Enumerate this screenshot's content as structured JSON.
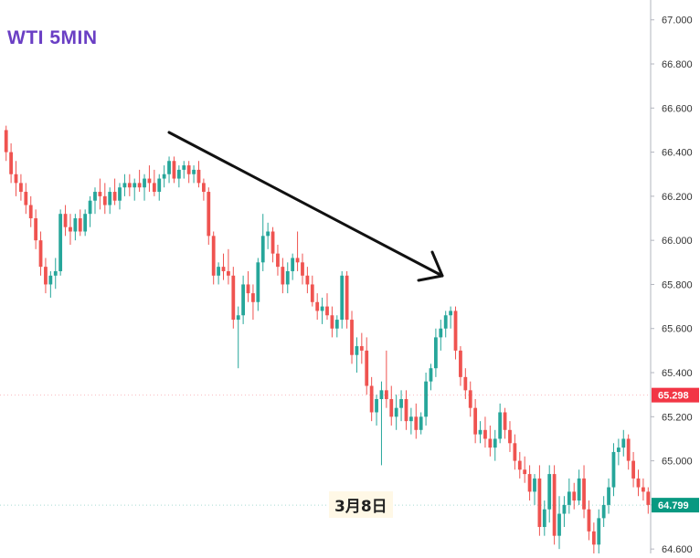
{
  "title": "WTI 5MIN",
  "chart_data": {
    "type": "candlestick",
    "title": "WTI 5MIN",
    "x_label": "3月8日",
    "y_axis_position": "right",
    "ylim": [
      64.58,
      67.09
    ],
    "ticks": [
      "67.000",
      "66.800",
      "66.600",
      "66.400",
      "66.200",
      "66.000",
      "65.800",
      "65.600",
      "65.400",
      "65.200",
      "65.000",
      "64.800",
      "64.600"
    ],
    "tick_values": [
      67.0,
      66.8,
      66.6,
      66.4,
      66.2,
      66.0,
      65.8,
      65.6,
      65.4,
      65.2,
      65.0,
      64.8,
      64.6
    ],
    "price_markers": [
      {
        "label": "65.298",
        "value": 65.298,
        "color": "#f23645"
      },
      {
        "label": "64.799",
        "value": 64.799,
        "color": "#089981"
      }
    ],
    "colors": {
      "up": "#26a69a",
      "down": "#ef5350"
    },
    "trend_arrow": {
      "from": [
        0,
        66.46
      ],
      "to": [
        96,
        65.82
      ],
      "description": "downtrend arrow"
    },
    "candles": [
      [
        66.5,
        66.52,
        66.36,
        66.4
      ],
      [
        66.4,
        66.44,
        66.26,
        66.3
      ],
      [
        66.3,
        66.36,
        66.2,
        66.26
      ],
      [
        66.26,
        66.3,
        66.18,
        66.22
      ],
      [
        66.22,
        66.26,
        66.12,
        66.16
      ],
      [
        66.16,
        66.2,
        66.06,
        66.1
      ],
      [
        66.1,
        66.14,
        65.96,
        66.0
      ],
      [
        66.0,
        66.04,
        65.84,
        65.88
      ],
      [
        65.88,
        65.92,
        65.76,
        65.8
      ],
      [
        65.8,
        65.86,
        65.74,
        65.84
      ],
      [
        65.84,
        65.92,
        65.78,
        65.86
      ],
      [
        65.86,
        66.14,
        65.84,
        66.12
      ],
      [
        66.12,
        66.16,
        66.02,
        66.06
      ],
      [
        66.06,
        66.12,
        65.98,
        66.04
      ],
      [
        66.04,
        66.12,
        66.0,
        66.1
      ],
      [
        66.1,
        66.14,
        66.02,
        66.04
      ],
      [
        66.04,
        66.14,
        66.02,
        66.12
      ],
      [
        66.12,
        66.2,
        66.06,
        66.18
      ],
      [
        66.18,
        66.24,
        66.12,
        66.22
      ],
      [
        66.22,
        66.28,
        66.14,
        66.2
      ],
      [
        66.2,
        66.26,
        66.12,
        66.16
      ],
      [
        66.16,
        66.24,
        66.12,
        66.22
      ],
      [
        66.22,
        66.28,
        66.16,
        66.18
      ],
      [
        66.18,
        66.26,
        66.14,
        66.24
      ],
      [
        66.24,
        66.3,
        66.2,
        66.26
      ],
      [
        66.26,
        66.3,
        66.2,
        66.24
      ],
      [
        66.24,
        66.28,
        66.18,
        66.26
      ],
      [
        66.26,
        66.32,
        66.22,
        66.24
      ],
      [
        66.24,
        66.3,
        66.18,
        66.28
      ],
      [
        66.28,
        66.34,
        66.22,
        66.26
      ],
      [
        66.26,
        66.32,
        66.2,
        66.22
      ],
      [
        66.22,
        66.3,
        66.18,
        66.28
      ],
      [
        66.28,
        66.34,
        66.24,
        66.3
      ],
      [
        66.3,
        66.38,
        66.26,
        66.36
      ],
      [
        66.36,
        66.38,
        66.26,
        66.28
      ],
      [
        66.28,
        66.34,
        66.24,
        66.32
      ],
      [
        66.32,
        66.36,
        66.28,
        66.34
      ],
      [
        66.34,
        66.36,
        66.26,
        66.3
      ],
      [
        66.3,
        66.34,
        66.26,
        66.32
      ],
      [
        66.32,
        66.36,
        66.24,
        66.26
      ],
      [
        66.26,
        66.28,
        66.18,
        66.22
      ],
      [
        66.22,
        66.24,
        65.98,
        66.02
      ],
      [
        66.02,
        66.04,
        65.8,
        65.84
      ],
      [
        65.84,
        65.9,
        65.8,
        65.88
      ],
      [
        65.88,
        65.94,
        65.82,
        65.86
      ],
      [
        65.86,
        65.96,
        65.8,
        65.84
      ],
      [
        65.84,
        65.88,
        65.6,
        65.64
      ],
      [
        65.64,
        65.7,
        65.42,
        65.66
      ],
      [
        65.66,
        65.84,
        65.62,
        65.8
      ],
      [
        65.8,
        65.86,
        65.72,
        65.76
      ],
      [
        65.76,
        65.8,
        65.64,
        65.72
      ],
      [
        65.72,
        65.92,
        65.68,
        65.9
      ],
      [
        65.9,
        66.12,
        65.86,
        66.02
      ],
      [
        66.02,
        66.08,
        65.96,
        66.04
      ],
      [
        66.04,
        66.06,
        65.9,
        65.94
      ],
      [
        65.94,
        65.98,
        65.84,
        65.88
      ],
      [
        65.88,
        65.92,
        65.76,
        65.8
      ],
      [
        65.8,
        65.9,
        65.76,
        65.86
      ],
      [
        65.86,
        65.94,
        65.82,
        65.92
      ],
      [
        65.92,
        66.04,
        65.86,
        65.9
      ],
      [
        65.9,
        65.94,
        65.8,
        65.84
      ],
      [
        65.84,
        65.88,
        65.76,
        65.8
      ],
      [
        65.8,
        65.84,
        65.7,
        65.72
      ],
      [
        65.72,
        65.76,
        65.64,
        65.68
      ],
      [
        65.68,
        65.74,
        65.62,
        65.7
      ],
      [
        65.7,
        65.76,
        65.64,
        65.66
      ],
      [
        65.66,
        65.7,
        65.56,
        65.6
      ],
      [
        65.6,
        65.66,
        65.56,
        65.64
      ],
      [
        65.64,
        65.86,
        65.6,
        65.84
      ],
      [
        65.84,
        65.86,
        65.6,
        65.64
      ],
      [
        65.64,
        65.68,
        65.44,
        65.48
      ],
      [
        65.48,
        65.56,
        65.4,
        65.52
      ],
      [
        65.52,
        65.58,
        65.44,
        65.5
      ],
      [
        65.5,
        65.56,
        65.3,
        65.34
      ],
      [
        65.34,
        65.38,
        65.18,
        65.22
      ],
      [
        65.22,
        65.3,
        65.16,
        65.28
      ],
      [
        65.28,
        65.36,
        64.98,
        65.32
      ],
      [
        65.32,
        65.5,
        65.24,
        65.28
      ],
      [
        65.28,
        65.34,
        65.16,
        65.2
      ],
      [
        65.2,
        65.3,
        65.14,
        65.24
      ],
      [
        65.24,
        65.32,
        65.18,
        65.28
      ],
      [
        65.28,
        65.32,
        65.14,
        65.18
      ],
      [
        65.18,
        65.24,
        65.12,
        65.2
      ],
      [
        65.2,
        65.26,
        65.1,
        65.14
      ],
      [
        65.14,
        65.22,
        65.12,
        65.2
      ],
      [
        65.2,
        65.4,
        65.16,
        65.36
      ],
      [
        65.36,
        65.44,
        65.32,
        65.42
      ],
      [
        65.42,
        65.6,
        65.38,
        65.56
      ],
      [
        65.56,
        65.64,
        65.5,
        65.6
      ],
      [
        65.6,
        65.68,
        65.56,
        65.66
      ],
      [
        65.66,
        65.7,
        65.6,
        65.68
      ],
      [
        65.68,
        65.7,
        65.46,
        65.5
      ],
      [
        65.5,
        65.52,
        65.34,
        65.38
      ],
      [
        65.38,
        65.42,
        65.28,
        65.32
      ],
      [
        65.32,
        65.36,
        65.2,
        65.24
      ],
      [
        65.24,
        65.28,
        65.08,
        65.12
      ],
      [
        65.12,
        65.18,
        65.08,
        65.14
      ],
      [
        65.14,
        65.2,
        65.06,
        65.1
      ],
      [
        65.1,
        65.16,
        65.02,
        65.06
      ],
      [
        65.06,
        65.14,
        65.0,
        65.1
      ],
      [
        65.1,
        65.26,
        65.08,
        65.22
      ],
      [
        65.22,
        65.24,
        65.1,
        65.14
      ],
      [
        65.14,
        65.18,
        65.04,
        65.08
      ],
      [
        65.08,
        65.12,
        64.96,
        65.0
      ],
      [
        65.0,
        65.04,
        64.92,
        64.96
      ],
      [
        64.96,
        65.02,
        64.9,
        64.94
      ],
      [
        64.94,
        64.98,
        64.82,
        64.86
      ],
      [
        64.86,
        64.94,
        64.8,
        64.92
      ],
      [
        64.92,
        64.98,
        64.66,
        64.7
      ],
      [
        64.7,
        64.82,
        64.66,
        64.78
      ],
      [
        64.78,
        64.98,
        64.72,
        64.94
      ],
      [
        64.94,
        64.98,
        64.62,
        64.66
      ],
      [
        64.66,
        64.84,
        64.6,
        64.76
      ],
      [
        64.76,
        64.84,
        64.7,
        64.8
      ],
      [
        64.8,
        64.92,
        64.76,
        64.86
      ],
      [
        64.86,
        64.9,
        64.78,
        64.82
      ],
      [
        64.82,
        64.96,
        64.8,
        64.92
      ],
      [
        64.92,
        64.98,
        64.74,
        64.78
      ],
      [
        64.78,
        64.82,
        64.64,
        64.68
      ],
      [
        64.68,
        64.72,
        64.58,
        64.62
      ],
      [
        64.62,
        64.78,
        64.58,
        64.74
      ],
      [
        64.74,
        64.84,
        64.7,
        64.8
      ],
      [
        64.8,
        64.92,
        64.76,
        64.88
      ],
      [
        64.88,
        65.08,
        64.84,
        65.04
      ],
      [
        65.04,
        65.1,
        64.98,
        65.06
      ],
      [
        65.06,
        65.14,
        65.02,
        65.1
      ],
      [
        65.1,
        65.12,
        64.96,
        65.0
      ],
      [
        65.0,
        65.04,
        64.88,
        64.92
      ],
      [
        64.92,
        64.96,
        64.84,
        64.88
      ],
      [
        64.88,
        64.92,
        64.82,
        64.86
      ],
      [
        64.86,
        64.88,
        64.76,
        64.8
      ]
    ]
  }
}
